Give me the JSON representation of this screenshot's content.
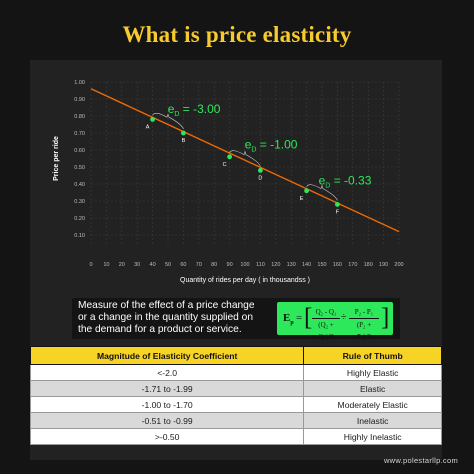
{
  "title": "What is price elasticity",
  "chart_data": {
    "type": "line",
    "title": "",
    "xlabel": "Quantity of rides per day ( in thousandss )",
    "ylabel": "Price per ride",
    "xlim": [
      0,
      200
    ],
    "ylim": [
      0.1,
      1.0
    ],
    "x_ticks": [
      "0",
      "10",
      "20",
      "30",
      "40",
      "50",
      "60",
      "70",
      "80",
      "90",
      "100",
      "110",
      "120",
      "130",
      "140",
      "150",
      "160",
      "170",
      "180",
      "190",
      "200"
    ],
    "y_ticks": [
      "1.00",
      "0.90",
      "0.80",
      "0.70",
      "0.60",
      "0.50",
      "0.40",
      "0.30",
      "0.20",
      "0.10"
    ],
    "grid": true,
    "series": [
      {
        "x": [
          0,
          200
        ],
        "y": [
          0.96,
          0.12
        ],
        "color": "#f06a00"
      }
    ],
    "points": [
      {
        "label": "A",
        "x": 40,
        "y": 0.78,
        "color": "#2ee85b"
      },
      {
        "label": "B",
        "x": 60,
        "y": 0.7,
        "color": "#2ee85b"
      },
      {
        "label": "C",
        "x": 90,
        "y": 0.56,
        "color": "#2ee85b"
      },
      {
        "label": "D",
        "x": 110,
        "y": 0.48,
        "color": "#2ee85b"
      },
      {
        "label": "E",
        "x": 140,
        "y": 0.36,
        "color": "#2ee85b"
      },
      {
        "label": "F",
        "x": 160,
        "y": 0.28,
        "color": "#2ee85b"
      }
    ],
    "annotations": [
      {
        "sym": "e",
        "sub": "D",
        "rest": " = -3.00",
        "x": 55,
        "y": 0.83
      },
      {
        "sym": "e",
        "sub": "D",
        "rest": " = -1.00",
        "x": 105,
        "y": 0.62
      },
      {
        "sym": "e",
        "sub": "D",
        "rest": " = -0.33",
        "x": 153,
        "y": 0.41
      }
    ]
  },
  "description": "Measure of the effect of a price change or a change in the quantity supplied on the demand for a product or service.",
  "formula": {
    "lhs": "E",
    "lhs_sub": "p",
    "eq": "=",
    "frac1_num": "Q₂ - Q₁",
    "frac1_den": "(Q₂ + Q₁)/2",
    "minus": "÷",
    "frac2_num": "P₂ - P₁",
    "frac2_den": "(P₂ + P₁)/2"
  },
  "table": {
    "headers": [
      "Magnitude of Elasticity Coefficient",
      "Rule of Thumb"
    ],
    "rows": [
      {
        "magnitude": "<-2.0",
        "rule": "Highly Elastic"
      },
      {
        "magnitude": "-1.71 to -1.99",
        "rule": "Elastic"
      },
      {
        "magnitude": "-1.00 to -1.70",
        "rule": "Moderately Elastic"
      },
      {
        "magnitude": "-0.51 to -0.99",
        "rule": "Inelastic"
      },
      {
        "magnitude": ">-0.50",
        "rule": "Highly Inelastic"
      }
    ]
  },
  "footer": "www.polestarllp.com"
}
